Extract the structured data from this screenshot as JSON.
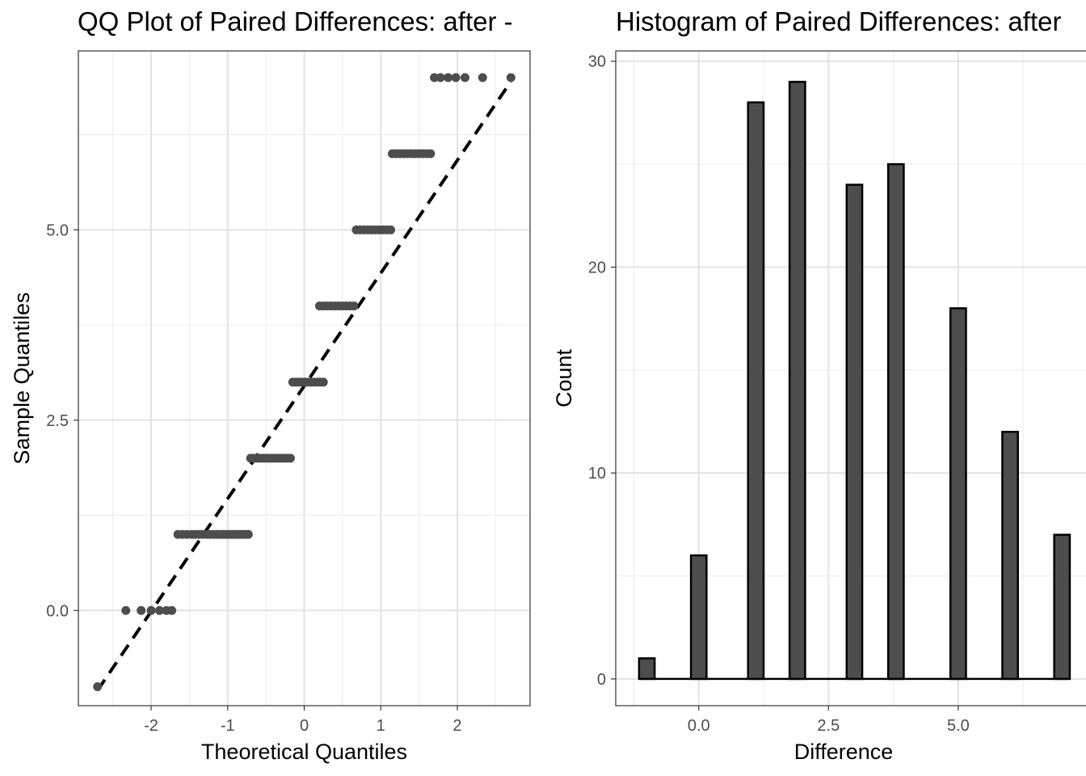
{
  "chart_data": [
    {
      "type": "scatter",
      "title": "QQ Plot of Paired Differences: after -",
      "xlabel": "Theoretical Quantiles",
      "ylabel": "Sample Quantiles",
      "xlim": [
        -2.95,
        2.95
      ],
      "ylim": [
        -1.25,
        7.35
      ],
      "x_ticks": [
        -2,
        -1,
        0,
        1,
        2
      ],
      "x_tick_labels": [
        "-2",
        "-1",
        "0",
        "1",
        "2"
      ],
      "y_ticks": [
        0,
        2.5,
        5
      ],
      "y_tick_labels": [
        "0.0",
        "2.5",
        "5.0"
      ],
      "grid": true,
      "reference_line": {
        "from": [
          -2.7,
          -1.05
        ],
        "to": [
          2.7,
          6.95
        ],
        "style": "dashed"
      },
      "points": [
        {
          "x": -2.7,
          "y": -1
        },
        {
          "x": -2.33,
          "y": 0
        },
        {
          "x": -2.13,
          "y": 0
        },
        {
          "x": -2.0,
          "y": 0
        },
        {
          "x": -1.89,
          "y": 0
        },
        {
          "x": -1.8,
          "y": 0
        },
        {
          "x": -1.73,
          "y": 0
        },
        {
          "x": -1.65,
          "y": 1
        },
        {
          "x": -1.59,
          "y": 1
        },
        {
          "x": -1.53,
          "y": 1
        },
        {
          "x": -1.47,
          "y": 1
        },
        {
          "x": -1.42,
          "y": 1
        },
        {
          "x": -1.37,
          "y": 1
        },
        {
          "x": -1.32,
          "y": 1
        },
        {
          "x": -1.27,
          "y": 1
        },
        {
          "x": -1.23,
          "y": 1
        },
        {
          "x": -1.18,
          "y": 1
        },
        {
          "x": -1.14,
          "y": 1
        },
        {
          "x": -1.1,
          "y": 1
        },
        {
          "x": -1.06,
          "y": 1
        },
        {
          "x": -1.02,
          "y": 1
        },
        {
          "x": -0.98,
          "y": 1
        },
        {
          "x": -0.94,
          "y": 1
        },
        {
          "x": -0.91,
          "y": 1
        },
        {
          "x": -0.87,
          "y": 1
        },
        {
          "x": -0.84,
          "y": 1
        },
        {
          "x": -0.8,
          "y": 1
        },
        {
          "x": -0.77,
          "y": 1
        },
        {
          "x": -0.73,
          "y": 1
        },
        {
          "x": -0.7,
          "y": 2
        },
        {
          "x": -0.66,
          "y": 2
        },
        {
          "x": -0.62,
          "y": 2
        },
        {
          "x": -0.58,
          "y": 2
        },
        {
          "x": -0.54,
          "y": 2
        },
        {
          "x": -0.5,
          "y": 2
        },
        {
          "x": -0.46,
          "y": 2
        },
        {
          "x": -0.42,
          "y": 2
        },
        {
          "x": -0.38,
          "y": 2
        },
        {
          "x": -0.34,
          "y": 2
        },
        {
          "x": -0.3,
          "y": 2
        },
        {
          "x": -0.26,
          "y": 2
        },
        {
          "x": -0.22,
          "y": 2
        },
        {
          "x": -0.18,
          "y": 2
        },
        {
          "x": -0.15,
          "y": 3
        },
        {
          "x": -0.11,
          "y": 3
        },
        {
          "x": -0.07,
          "y": 3
        },
        {
          "x": -0.03,
          "y": 3
        },
        {
          "x": 0.01,
          "y": 3
        },
        {
          "x": 0.05,
          "y": 3
        },
        {
          "x": 0.09,
          "y": 3
        },
        {
          "x": 0.13,
          "y": 3
        },
        {
          "x": 0.17,
          "y": 3
        },
        {
          "x": 0.21,
          "y": 3
        },
        {
          "x": 0.25,
          "y": 3
        },
        {
          "x": 0.2,
          "y": 4
        },
        {
          "x": 0.25,
          "y": 4
        },
        {
          "x": 0.3,
          "y": 4
        },
        {
          "x": 0.35,
          "y": 4
        },
        {
          "x": 0.4,
          "y": 4
        },
        {
          "x": 0.45,
          "y": 4
        },
        {
          "x": 0.5,
          "y": 4
        },
        {
          "x": 0.55,
          "y": 4
        },
        {
          "x": 0.6,
          "y": 4
        },
        {
          "x": 0.65,
          "y": 4
        },
        {
          "x": 0.68,
          "y": 5
        },
        {
          "x": 0.73,
          "y": 5
        },
        {
          "x": 0.78,
          "y": 5
        },
        {
          "x": 0.83,
          "y": 5
        },
        {
          "x": 0.88,
          "y": 5
        },
        {
          "x": 0.93,
          "y": 5
        },
        {
          "x": 0.98,
          "y": 5
        },
        {
          "x": 1.03,
          "y": 5
        },
        {
          "x": 1.08,
          "y": 5
        },
        {
          "x": 1.13,
          "y": 5
        },
        {
          "x": 1.15,
          "y": 6
        },
        {
          "x": 1.2,
          "y": 6
        },
        {
          "x": 1.25,
          "y": 6
        },
        {
          "x": 1.3,
          "y": 6
        },
        {
          "x": 1.35,
          "y": 6
        },
        {
          "x": 1.4,
          "y": 6
        },
        {
          "x": 1.45,
          "y": 6
        },
        {
          "x": 1.5,
          "y": 6
        },
        {
          "x": 1.55,
          "y": 6
        },
        {
          "x": 1.6,
          "y": 6
        },
        {
          "x": 1.65,
          "y": 6
        },
        {
          "x": 1.7,
          "y": 7
        },
        {
          "x": 1.78,
          "y": 7
        },
        {
          "x": 1.88,
          "y": 7
        },
        {
          "x": 1.98,
          "y": 7
        },
        {
          "x": 2.1,
          "y": 7
        },
        {
          "x": 2.33,
          "y": 7
        },
        {
          "x": 2.7,
          "y": 7
        }
      ]
    },
    {
      "type": "bar",
      "title": "Histogram of Paired Differences: after",
      "xlabel": "Difference",
      "ylabel": "Count",
      "xlim": [
        -1.6,
        7.4
      ],
      "ylim": [
        -1.3,
        30.5
      ],
      "x_ticks": [
        0,
        2.5,
        5
      ],
      "x_tick_labels": [
        "0.0",
        "2.5",
        "5.0"
      ],
      "y_ticks": [
        0,
        10,
        20,
        30
      ],
      "y_tick_labels": [
        "0",
        "10",
        "20",
        "30"
      ],
      "grid": true,
      "bar_width": 0.3,
      "bins": [
        {
          "x": -1,
          "count": 1
        },
        {
          "x": 0,
          "count": 6
        },
        {
          "x": 1.1,
          "count": 28
        },
        {
          "x": 1.9,
          "count": 29
        },
        {
          "x": 3.0,
          "count": 24
        },
        {
          "x": 3.8,
          "count": 25
        },
        {
          "x": 5.0,
          "count": 18
        },
        {
          "x": 6.0,
          "count": 12
        },
        {
          "x": 7.0,
          "count": 7
        }
      ],
      "bar_fill": "#4d4d4d",
      "bar_outline": "#000000"
    }
  ]
}
